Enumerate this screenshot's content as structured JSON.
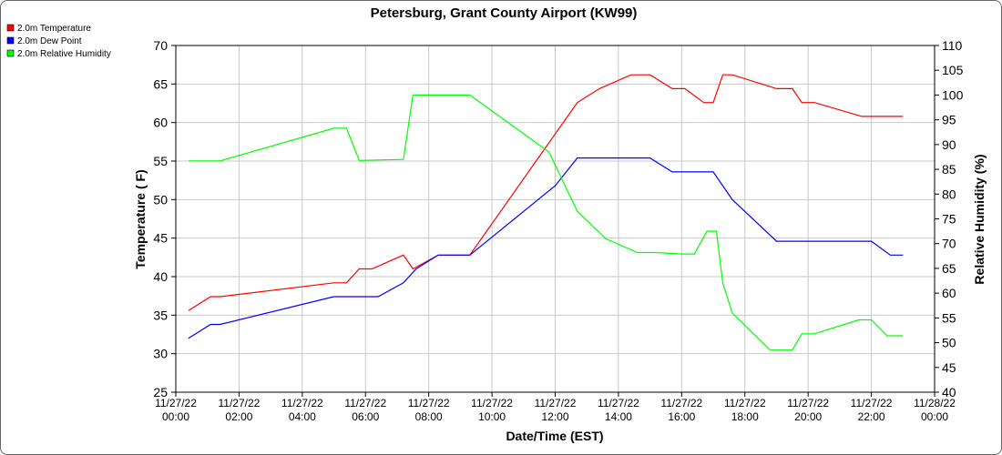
{
  "chart_data": {
    "type": "line",
    "title": "Petersburg, Grant County Airport (KW99)",
    "xlabel": "Date/Time (EST)",
    "ylabel_left": "Temperature ( F)",
    "ylabel_right": "Relative Humidity (%)",
    "ylim_left": [
      25,
      70
    ],
    "ylim_right": [
      40,
      110
    ],
    "xlim_hours": [
      0,
      24
    ],
    "grid": true,
    "legend_placement": "top-left",
    "x_ticks": [
      {
        "h": 0,
        "date": "11/27/22",
        "time": "00:00"
      },
      {
        "h": 2,
        "date": "11/27/22",
        "time": "02:00"
      },
      {
        "h": 4,
        "date": "11/27/22",
        "time": "04:00"
      },
      {
        "h": 6,
        "date": "11/27/22",
        "time": "06:00"
      },
      {
        "h": 8,
        "date": "11/27/22",
        "time": "08:00"
      },
      {
        "h": 10,
        "date": "11/27/22",
        "time": "10:00"
      },
      {
        "h": 12,
        "date": "11/27/22",
        "time": "12:00"
      },
      {
        "h": 14,
        "date": "11/27/22",
        "time": "14:00"
      },
      {
        "h": 16,
        "date": "11/27/22",
        "time": "16:00"
      },
      {
        "h": 18,
        "date": "11/27/22",
        "time": "18:00"
      },
      {
        "h": 20,
        "date": "11/27/22",
        "time": "20:00"
      },
      {
        "h": 22,
        "date": "11/27/22",
        "time": "22:00"
      },
      {
        "h": 24,
        "date": "11/28/22",
        "time": "00:00"
      }
    ],
    "y_ticks_left": [
      25,
      30,
      35,
      40,
      45,
      50,
      55,
      60,
      65,
      70
    ],
    "y_ticks_right": [
      40,
      45,
      50,
      55,
      60,
      65,
      70,
      75,
      80,
      85,
      90,
      95,
      100,
      105,
      110
    ],
    "series": [
      {
        "name": "2.0m Temperature",
        "color": "#ff0000",
        "axis": "left",
        "points": [
          [
            0.4,
            35.6
          ],
          [
            1.1,
            37.4
          ],
          [
            1.4,
            37.4
          ],
          [
            5.0,
            39.2
          ],
          [
            5.4,
            39.2
          ],
          [
            5.8,
            41.0
          ],
          [
            6.2,
            41.0
          ],
          [
            7.2,
            42.8
          ],
          [
            7.5,
            41.0
          ],
          [
            8.3,
            42.8
          ],
          [
            9.3,
            42.8
          ],
          [
            12.7,
            62.6
          ],
          [
            13.4,
            64.4
          ],
          [
            14.4,
            66.2
          ],
          [
            15.0,
            66.2
          ],
          [
            15.7,
            64.4
          ],
          [
            16.1,
            64.4
          ],
          [
            16.7,
            62.6
          ],
          [
            17.0,
            62.6
          ],
          [
            17.3,
            66.2
          ],
          [
            17.6,
            66.2
          ],
          [
            19.0,
            64.4
          ],
          [
            19.5,
            64.4
          ],
          [
            19.8,
            62.6
          ],
          [
            20.2,
            62.6
          ],
          [
            21.7,
            60.8
          ],
          [
            23.0,
            60.8
          ]
        ]
      },
      {
        "name": "2.0m Dew Point",
        "color": "#0000ff",
        "axis": "left",
        "points": [
          [
            0.4,
            32.0
          ],
          [
            1.1,
            33.8
          ],
          [
            1.4,
            33.8
          ],
          [
            5.0,
            37.4
          ],
          [
            6.4,
            37.4
          ],
          [
            7.2,
            39.2
          ],
          [
            7.6,
            41.0
          ],
          [
            8.3,
            42.8
          ],
          [
            9.3,
            42.8
          ],
          [
            12.0,
            51.8
          ],
          [
            12.7,
            55.4
          ],
          [
            15.0,
            55.4
          ],
          [
            15.7,
            53.6
          ],
          [
            17.0,
            53.6
          ],
          [
            17.6,
            50.0
          ],
          [
            19.0,
            44.6
          ],
          [
            22.0,
            44.6
          ],
          [
            22.6,
            42.8
          ],
          [
            23.0,
            42.8
          ]
        ]
      },
      {
        "name": "2.0m Relative Humidity",
        "color": "#00ff00",
        "axis": "right",
        "points": [
          [
            0.4,
            86.7
          ],
          [
            1.4,
            86.7
          ],
          [
            5.0,
            93.3
          ],
          [
            5.4,
            93.3
          ],
          [
            5.8,
            86.8
          ],
          [
            7.2,
            87.0
          ],
          [
            7.5,
            100.0
          ],
          [
            9.3,
            100.0
          ],
          [
            11.8,
            88.5
          ],
          [
            12.7,
            76.5
          ],
          [
            13.6,
            71.0
          ],
          [
            14.6,
            68.2
          ],
          [
            15.2,
            68.2
          ],
          [
            16.0,
            67.9
          ],
          [
            16.4,
            67.9
          ],
          [
            16.8,
            72.5
          ],
          [
            17.1,
            72.5
          ],
          [
            17.3,
            62.0
          ],
          [
            17.6,
            56.0
          ],
          [
            18.8,
            48.5
          ],
          [
            19.5,
            48.5
          ],
          [
            19.8,
            51.8
          ],
          [
            20.2,
            51.8
          ],
          [
            21.6,
            54.6
          ],
          [
            22.0,
            54.6
          ],
          [
            22.5,
            51.4
          ],
          [
            23.0,
            51.4
          ]
        ]
      }
    ]
  }
}
